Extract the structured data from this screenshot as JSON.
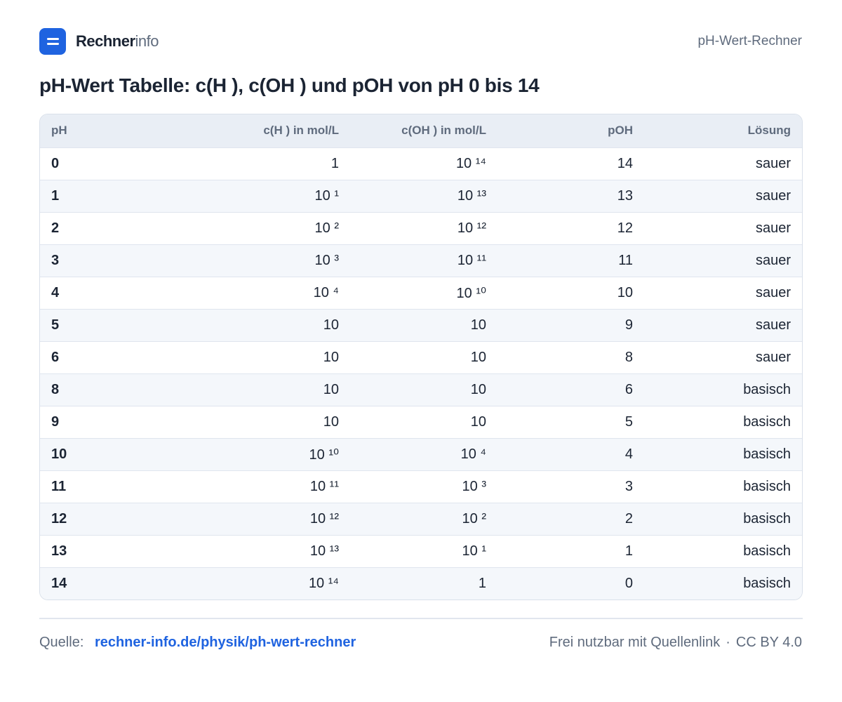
{
  "header": {
    "brand_strong": "Rechner",
    "brand_light": "info",
    "right_label": "pH-Wert-Rechner"
  },
  "title": "pH-Wert Tabelle: c(H ), c(OH ) und pOH von pH 0 bis 14",
  "table": {
    "columns": [
      "pH",
      "c(H ) in mol/L",
      "c(OH ) in mol/L",
      "pOH",
      "Lösung"
    ],
    "rows": [
      [
        "0",
        "1",
        "10 ¹⁴",
        "14",
        "sauer"
      ],
      [
        "1",
        "10 ¹",
        "10 ¹³",
        "13",
        "sauer"
      ],
      [
        "2",
        "10 ²",
        "10 ¹²",
        "12",
        "sauer"
      ],
      [
        "3",
        "10 ³",
        "10 ¹¹",
        "11",
        "sauer"
      ],
      [
        "4",
        "10 ⁴",
        "10 ¹⁰",
        "10",
        "sauer"
      ],
      [
        "5",
        "10",
        "10",
        "9",
        "sauer"
      ],
      [
        "6",
        "10",
        "10",
        "8",
        "sauer"
      ],
      [
        "8",
        "10",
        "10",
        "6",
        "basisch"
      ],
      [
        "9",
        "10",
        "10",
        "5",
        "basisch"
      ],
      [
        "10",
        "10 ¹⁰",
        "10 ⁴",
        "4",
        "basisch"
      ],
      [
        "11",
        "10 ¹¹",
        "10 ³",
        "3",
        "basisch"
      ],
      [
        "12",
        "10 ¹²",
        "10 ²",
        "2",
        "basisch"
      ],
      [
        "13",
        "10 ¹³",
        "10 ¹",
        "1",
        "basisch"
      ],
      [
        "14",
        "10 ¹⁴",
        "1",
        "0",
        "basisch"
      ]
    ]
  },
  "footer": {
    "source_label": "Quelle:",
    "source_link": "rechner-info.de/physik/ph-wert-rechner",
    "license_text": "Frei nutzbar mit Quellenlink",
    "separator": "·",
    "license_code": "CC BY 4.0"
  },
  "colors": {
    "accent": "#1f63e0",
    "text_dark": "#1b2433",
    "text_muted": "#5f6b7d",
    "header_row_bg": "#e9eef5",
    "stripe_bg": "#f4f7fb"
  }
}
